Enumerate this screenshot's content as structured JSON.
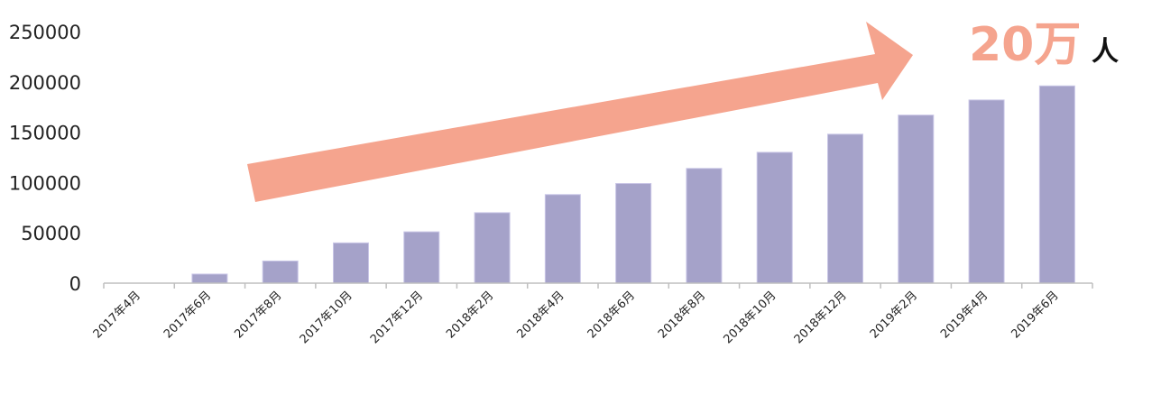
{
  "chart_data": {
    "type": "bar",
    "categories": [
      "2017年4月",
      "2017年6月",
      "2017年8月",
      "2017年10月",
      "2017年12月",
      "2018年2月",
      "2018年4月",
      "2018年6月",
      "2018年8月",
      "2018年10月",
      "2018年12月",
      "2019年2月",
      "2019年4月",
      "2019年6月"
    ],
    "values": [
      0,
      9000,
      22000,
      40000,
      51000,
      70000,
      88000,
      99000,
      114000,
      130000,
      148000,
      167000,
      182000,
      196000
    ],
    "ylim": [
      0,
      250000
    ],
    "yticks": [
      "0",
      "50000",
      "100000",
      "150000",
      "200000",
      "250000"
    ],
    "grid": false,
    "legend": "none",
    "annotation": {
      "number": "20万",
      "unit": "人"
    },
    "colors": {
      "bar": "#a5a2c9",
      "bar_edge": "#c9c6e6",
      "arrow": "#f5a48e",
      "annotation_number": "#f5a48e",
      "annotation_unit": "#111111",
      "axis": "#bfbfbf"
    }
  }
}
